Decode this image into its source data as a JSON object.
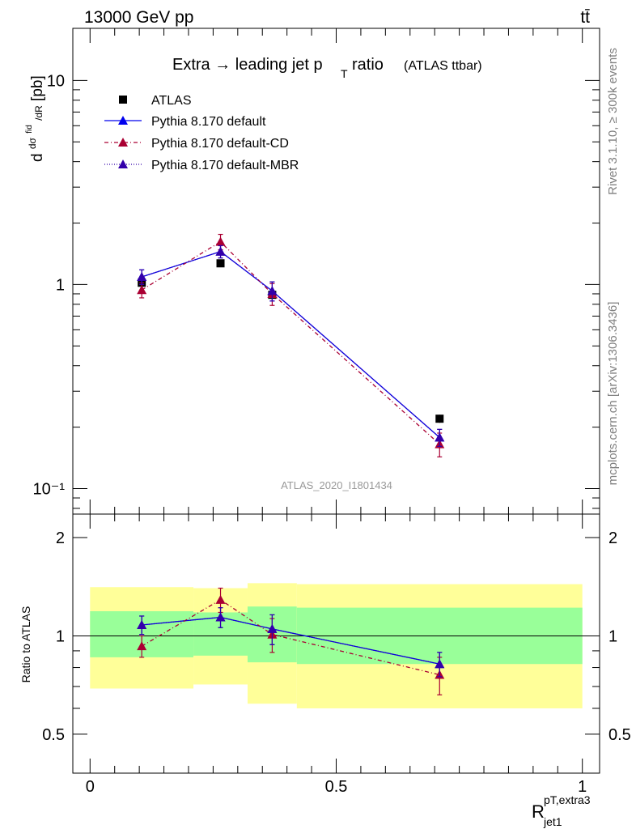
{
  "header": {
    "left": "13000 GeV pp",
    "right": "tt̄"
  },
  "side_text": {
    "rivet": "Rivet 3.1.10, ≥ 300k events",
    "mcplots": "mcplots.cern.ch [arXiv:1306.3436]"
  },
  "analysis_id": "ATLAS_2020_I1801434",
  "colors": {
    "atlas": "#000000",
    "default": "#0000ee",
    "cd": "#aa0033",
    "mbr": "#3300aa",
    "band_inner": "#99ff99",
    "band_outer": "#ffff99"
  },
  "chart_data": [
    {
      "type": "scatter",
      "panel": "main",
      "title_main": "Extra → leading jet p",
      "title_sub": "T",
      "title_tail": "ratio",
      "title_small": "(ATLAS ttbar)",
      "ylabel": "dσ/dR [pb]",
      "yscale": "log",
      "ylim": [
        0.075,
        18
      ],
      "xlim": [
        -0.035,
        1.035
      ],
      "y_ticks": [
        "10",
        "1",
        "10⁻¹"
      ],
      "series": [
        {
          "name": "ATLAS",
          "x": [
            0.105,
            0.265,
            0.37,
            0.71
          ],
          "values": [
            1.02,
            1.27,
            0.89,
            0.22
          ],
          "err": [
            0.04,
            0.04,
            0.03,
            0.01
          ]
        },
        {
          "name": "Pythia 8.170 default",
          "x": [
            0.105,
            0.265,
            0.37,
            0.71
          ],
          "values": [
            1.09,
            1.45,
            0.93,
            0.178
          ],
          "err": [
            0.09,
            0.1,
            0.1,
            0.017
          ]
        },
        {
          "name": "Pythia 8.170 default-CD",
          "x": [
            0.105,
            0.265,
            0.37,
            0.71
          ],
          "values": [
            0.94,
            1.62,
            0.9,
            0.165
          ],
          "err": [
            0.08,
            0.14,
            0.11,
            0.022
          ]
        },
        {
          "name": "Pythia 8.170 default-MBR",
          "x": [
            0.105,
            0.265,
            0.37,
            0.71
          ],
          "values": [
            1.09,
            1.45,
            0.93,
            0.178
          ],
          "err": [
            0.09,
            0.1,
            0.1,
            0.017
          ]
        }
      ]
    },
    {
      "type": "line",
      "panel": "ratio",
      "ylabel": "Ratio to ATLAS",
      "ylim": [
        0.38,
        2.36
      ],
      "xlim": [
        -0.035,
        1.035
      ],
      "xlabel": "R",
      "xlabel_sup": "pT,extra3",
      "xlabel_sub": "jet1",
      "x_ticks": [
        "0",
        "0.5",
        "1"
      ],
      "y_ticks": [
        "2",
        "1",
        "0.5"
      ],
      "bands": {
        "bins": [
          [
            0.0,
            0.21
          ],
          [
            0.21,
            0.32
          ],
          [
            0.32,
            0.42
          ],
          [
            0.42,
            1.0
          ]
        ],
        "inner": [
          [
            0.86,
            1.19
          ],
          [
            0.87,
            1.18
          ],
          [
            0.83,
            1.23
          ],
          [
            0.82,
            1.22
          ]
        ],
        "outer": [
          [
            0.69,
            1.41
          ],
          [
            0.71,
            1.4
          ],
          [
            0.62,
            1.45
          ],
          [
            0.6,
            1.44
          ]
        ]
      },
      "series": [
        {
          "name": "Pythia 8.170 default",
          "x": [
            0.105,
            0.265,
            0.37,
            0.71
          ],
          "values": [
            1.08,
            1.14,
            1.05,
            0.82
          ],
          "err": [
            0.07,
            0.08,
            0.11,
            0.07
          ]
        },
        {
          "name": "Pythia 8.170 default-CD",
          "x": [
            0.105,
            0.265,
            0.37,
            0.71
          ],
          "values": [
            0.93,
            1.29,
            1.01,
            0.76
          ],
          "err": [
            0.07,
            0.11,
            0.12,
            0.1
          ]
        },
        {
          "name": "Pythia 8.170 default-MBR",
          "x": [
            0.105,
            0.265,
            0.37,
            0.71
          ],
          "values": [
            1.08,
            1.14,
            1.05,
            0.82
          ],
          "err": [
            0.07,
            0.08,
            0.11,
            0.07
          ]
        }
      ]
    }
  ]
}
